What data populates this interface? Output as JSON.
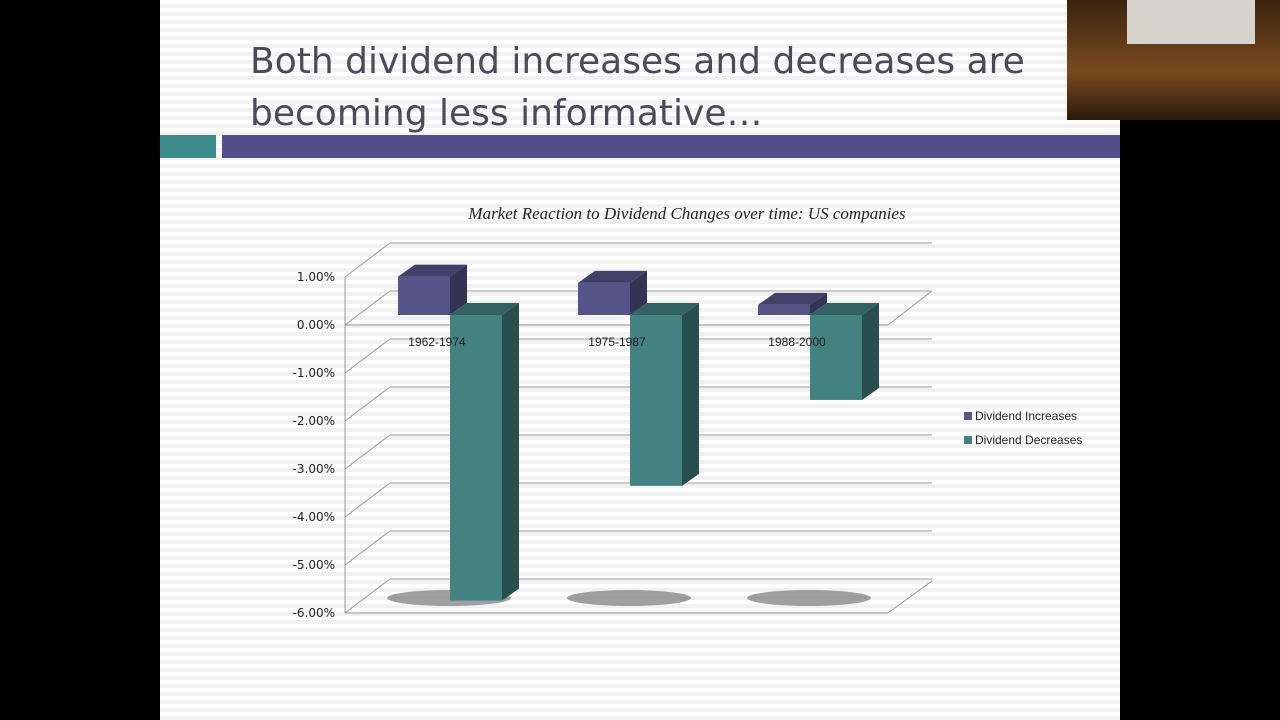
{
  "slide": {
    "title_line1": "Both dividend increases and decreases are",
    "title_line2": "becoming less informative…"
  },
  "colors": {
    "increase": "#55558a",
    "decrease": "#448282",
    "accent_teal": "#3d8a8a",
    "accent_purple": "#4f4f8a"
  },
  "chart_data": {
    "type": "bar",
    "title": "Market Reaction to Dividend Changes over time: US companies",
    "categories": [
      "1962-1974",
      "1975-1987",
      "1988-2000"
    ],
    "series": [
      {
        "name": "Dividend Increases",
        "values": [
          0.8,
          0.67,
          0.21
        ]
      },
      {
        "name": "Dividend Decreases",
        "values": [
          -5.95,
          -3.56,
          -1.77
        ]
      }
    ],
    "yticks": [
      "1.00%",
      "0.00%",
      "-1.00%",
      "-2.00%",
      "-3.00%",
      "-4.00%",
      "-5.00%",
      "-6.00%"
    ],
    "ylim": [
      -6,
      1
    ],
    "yunit": "%",
    "legend": "right",
    "grid": true,
    "style": "3d"
  }
}
